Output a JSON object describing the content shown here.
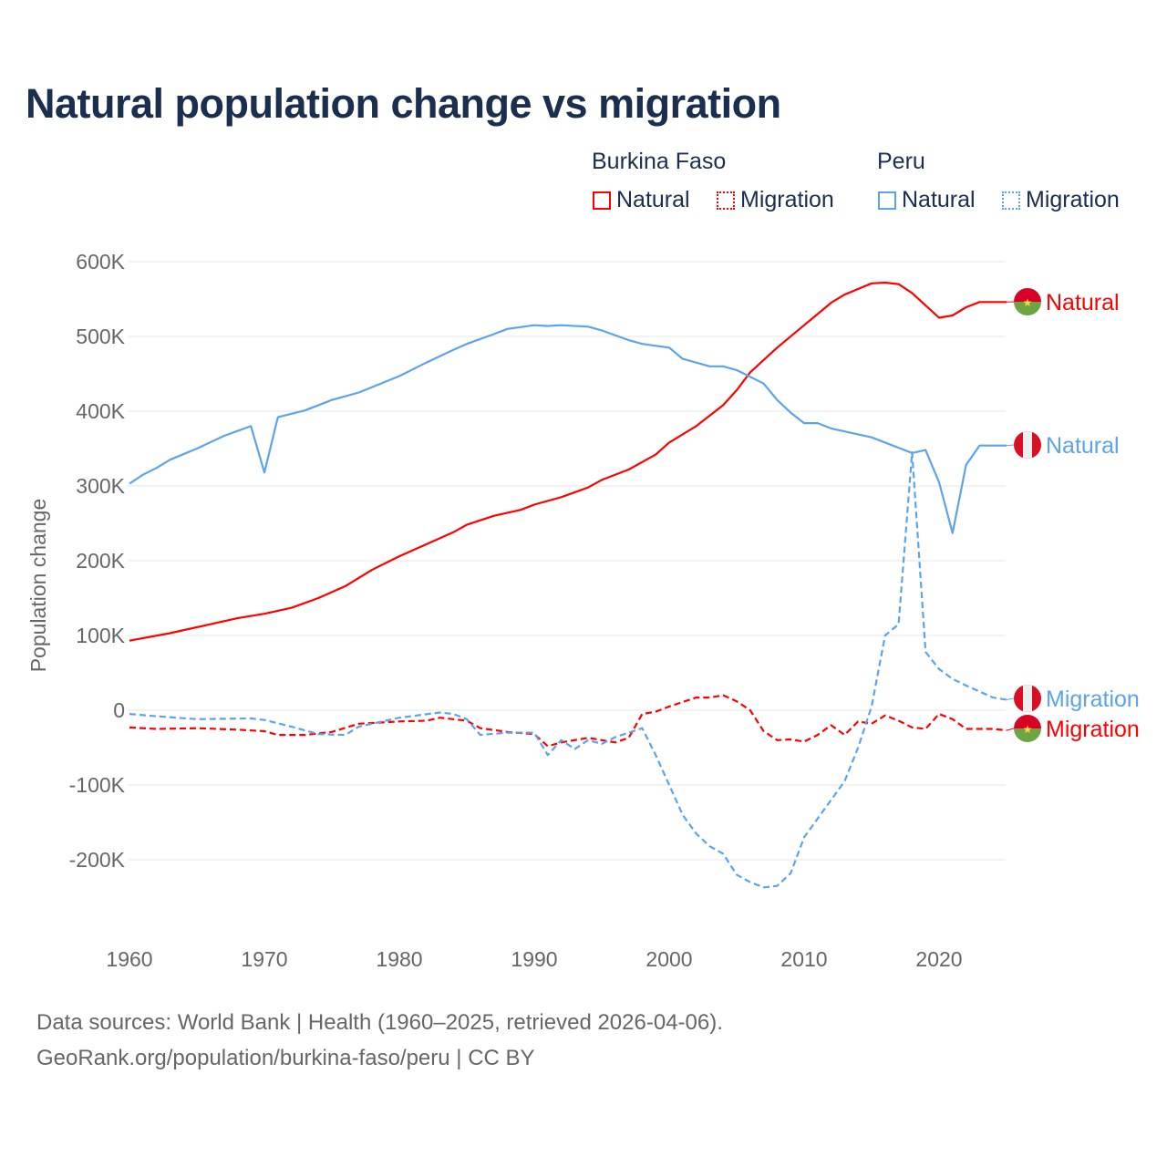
{
  "chart_data": {
    "type": "line",
    "title": "Natural population change vs migration",
    "xlabel": "",
    "ylabel": "Population change",
    "xlim": [
      1960,
      2025
    ],
    "ylim": [
      -260000,
      620000
    ],
    "x_ticks": [
      "1960",
      "1970",
      "1980",
      "1990",
      "2000",
      "2010",
      "2020"
    ],
    "y_ticks": [
      {
        "value": 600000,
        "label": "600K"
      },
      {
        "value": 500000,
        "label": "500K"
      },
      {
        "value": 400000,
        "label": "400K"
      },
      {
        "value": 300000,
        "label": "300K"
      },
      {
        "value": 200000,
        "label": "200K"
      },
      {
        "value": 100000,
        "label": "100K"
      },
      {
        "value": 0,
        "label": "0"
      },
      {
        "value": -100000,
        "label": "-100K"
      },
      {
        "value": -200000,
        "label": "-200K"
      }
    ],
    "grid": true,
    "legend": {
      "placement": "top-right",
      "groups": [
        {
          "country": "Burkina Faso",
          "items": [
            "Natural",
            "Migration"
          ]
        },
        {
          "country": "Peru",
          "items": [
            "Natural",
            "Migration"
          ]
        }
      ]
    },
    "series": [
      {
        "name": "Burkina Faso Natural",
        "label": "Natural",
        "country": "Burkina Faso",
        "color": "#ff0000",
        "dash": false,
        "points": [
          [
            1960,
            93000
          ],
          [
            1963,
            103000
          ],
          [
            1966,
            115000
          ],
          [
            1968,
            123000
          ],
          [
            1970,
            129000
          ],
          [
            1972,
            137000
          ],
          [
            1974,
            150000
          ],
          [
            1976,
            166000
          ],
          [
            1978,
            188000
          ],
          [
            1980,
            206000
          ],
          [
            1982,
            222000
          ],
          [
            1984,
            238000
          ],
          [
            1985,
            248000
          ],
          [
            1987,
            260000
          ],
          [
            1989,
            268000
          ],
          [
            1990,
            275000
          ],
          [
            1992,
            285000
          ],
          [
            1994,
            298000
          ],
          [
            1995,
            308000
          ],
          [
            1997,
            322000
          ],
          [
            1999,
            342000
          ],
          [
            2000,
            358000
          ],
          [
            2002,
            380000
          ],
          [
            2004,
            408000
          ],
          [
            2005,
            428000
          ],
          [
            2006,
            452000
          ],
          [
            2008,
            485000
          ],
          [
            2010,
            515000
          ],
          [
            2012,
            545000
          ],
          [
            2013,
            556000
          ],
          [
            2015,
            571000
          ],
          [
            2016,
            572000
          ],
          [
            2017,
            570000
          ],
          [
            2018,
            558000
          ],
          [
            2020,
            525000
          ],
          [
            2021,
            528000
          ],
          [
            2022,
            539000
          ],
          [
            2023,
            546000
          ],
          [
            2024,
            546000
          ],
          [
            2025,
            546000
          ]
        ]
      },
      {
        "name": "Burkina Faso Migration",
        "label": "Migration",
        "country": "Burkina Faso",
        "color": "#ff0000",
        "dash": true,
        "points": [
          [
            1960,
            -23000
          ],
          [
            1962,
            -25000
          ],
          [
            1965,
            -24000
          ],
          [
            1968,
            -26000
          ],
          [
            1970,
            -28000
          ],
          [
            1971,
            -33000
          ],
          [
            1973,
            -33000
          ],
          [
            1975,
            -29000
          ],
          [
            1977,
            -18000
          ],
          [
            1980,
            -15000
          ],
          [
            1982,
            -14000
          ],
          [
            1983,
            -10000
          ],
          [
            1985,
            -14000
          ],
          [
            1986,
            -24000
          ],
          [
            1988,
            -29000
          ],
          [
            1990,
            -32000
          ],
          [
            1991,
            -48000
          ],
          [
            1992,
            -43000
          ],
          [
            1994,
            -37000
          ],
          [
            1996,
            -43000
          ],
          [
            1997,
            -37000
          ],
          [
            1998,
            -5000
          ],
          [
            1999,
            -2000
          ],
          [
            2000,
            5000
          ],
          [
            2002,
            17000
          ],
          [
            2003,
            17000
          ],
          [
            2004,
            20000
          ],
          [
            2005,
            12000
          ],
          [
            2006,
            0
          ],
          [
            2007,
            -28000
          ],
          [
            2008,
            -40000
          ],
          [
            2009,
            -39000
          ],
          [
            2010,
            -42000
          ],
          [
            2011,
            -33000
          ],
          [
            2012,
            -20000
          ],
          [
            2013,
            -33000
          ],
          [
            2014,
            -15000
          ],
          [
            2015,
            -18000
          ],
          [
            2016,
            -7000
          ],
          [
            2017,
            -14000
          ],
          [
            2018,
            -23000
          ],
          [
            2019,
            -25000
          ],
          [
            2020,
            -5000
          ],
          [
            2021,
            -12000
          ],
          [
            2022,
            -25000
          ],
          [
            2024,
            -25000
          ],
          [
            2025,
            -27000
          ]
        ]
      },
      {
        "name": "Peru Natural",
        "label": "Natural",
        "country": "Peru",
        "color": "#5ba4ec",
        "dash": false,
        "points": [
          [
            1960,
            303000
          ],
          [
            1961,
            315000
          ],
          [
            1962,
            324000
          ],
          [
            1963,
            335000
          ],
          [
            1965,
            350000
          ],
          [
            1967,
            367000
          ],
          [
            1969,
            380000
          ],
          [
            1970,
            318000
          ],
          [
            1971,
            392000
          ],
          [
            1973,
            401000
          ],
          [
            1975,
            415000
          ],
          [
            1977,
            425000
          ],
          [
            1980,
            447000
          ],
          [
            1982,
            465000
          ],
          [
            1984,
            482000
          ],
          [
            1985,
            490000
          ],
          [
            1987,
            503000
          ],
          [
            1988,
            510000
          ],
          [
            1990,
            515000
          ],
          [
            1991,
            514000
          ],
          [
            1992,
            515000
          ],
          [
            1994,
            513000
          ],
          [
            1995,
            508000
          ],
          [
            1997,
            495000
          ],
          [
            1998,
            490000
          ],
          [
            2000,
            485000
          ],
          [
            2001,
            470000
          ],
          [
            2003,
            460000
          ],
          [
            2004,
            460000
          ],
          [
            2005,
            455000
          ],
          [
            2007,
            437000
          ],
          [
            2008,
            415000
          ],
          [
            2009,
            398000
          ],
          [
            2010,
            384000
          ],
          [
            2011,
            384000
          ],
          [
            2012,
            377000
          ],
          [
            2014,
            369000
          ],
          [
            2015,
            365000
          ],
          [
            2018,
            344000
          ],
          [
            2019,
            348000
          ],
          [
            2020,
            305000
          ],
          [
            2021,
            237000
          ],
          [
            2022,
            328000
          ],
          [
            2023,
            354000
          ],
          [
            2024,
            354000
          ],
          [
            2025,
            354000
          ]
        ]
      },
      {
        "name": "Peru Migration",
        "label": "Migration",
        "country": "Peru",
        "color": "#5ba4ec",
        "dash": true,
        "points": [
          [
            1960,
            -5000
          ],
          [
            1962,
            -8000
          ],
          [
            1965,
            -12000
          ],
          [
            1969,
            -11000
          ],
          [
            1970,
            -13000
          ],
          [
            1972,
            -22000
          ],
          [
            1974,
            -32000
          ],
          [
            1976,
            -33000
          ],
          [
            1977,
            -22000
          ],
          [
            1980,
            -10000
          ],
          [
            1983,
            -3000
          ],
          [
            1984,
            -5000
          ],
          [
            1985,
            -12000
          ],
          [
            1986,
            -33000
          ],
          [
            1988,
            -30000
          ],
          [
            1990,
            -30000
          ],
          [
            1991,
            -60000
          ],
          [
            1992,
            -40000
          ],
          [
            1993,
            -52000
          ],
          [
            1994,
            -40000
          ],
          [
            1995,
            -45000
          ],
          [
            1996,
            -36000
          ],
          [
            1997,
            -30000
          ],
          [
            1998,
            -24000
          ],
          [
            1999,
            -60000
          ],
          [
            2000,
            -100000
          ],
          [
            2001,
            -140000
          ],
          [
            2002,
            -165000
          ],
          [
            2003,
            -182000
          ],
          [
            2004,
            -192000
          ],
          [
            2005,
            -220000
          ],
          [
            2006,
            -230000
          ],
          [
            2007,
            -237000
          ],
          [
            2008,
            -235000
          ],
          [
            2009,
            -218000
          ],
          [
            2010,
            -170000
          ],
          [
            2011,
            -145000
          ],
          [
            2012,
            -120000
          ],
          [
            2013,
            -95000
          ],
          [
            2014,
            -50000
          ],
          [
            2015,
            5000
          ],
          [
            2016,
            100000
          ],
          [
            2017,
            115000
          ],
          [
            2018,
            345000
          ],
          [
            2019,
            78000
          ],
          [
            2020,
            55000
          ],
          [
            2021,
            42000
          ],
          [
            2022,
            33000
          ],
          [
            2023,
            25000
          ],
          [
            2024,
            17000
          ],
          [
            2025,
            14000
          ]
        ]
      }
    ],
    "end_labels": [
      {
        "series": 0,
        "text": "Natural",
        "flag": "burkina-faso"
      },
      {
        "series": 2,
        "text": "Natural",
        "flag": "peru"
      },
      {
        "series": 3,
        "text": "Migration",
        "flag": "peru"
      },
      {
        "series": 1,
        "text": "Migration",
        "flag": "burkina-faso"
      }
    ]
  },
  "legend": {
    "burkina": "Burkina Faso",
    "peru": "Peru",
    "natural": "Natural",
    "migration": "Migration"
  },
  "footer": {
    "line1": "Data sources: World Bank | Health (1960–2025, retrieved 2026-04-06).",
    "line2": "GeoRank.org/population/burkina-faso/peru | CC BY"
  },
  "colors": {
    "burkina": "#ff0000",
    "peru": "#5ba4ec",
    "title": "#1a2e4f"
  }
}
